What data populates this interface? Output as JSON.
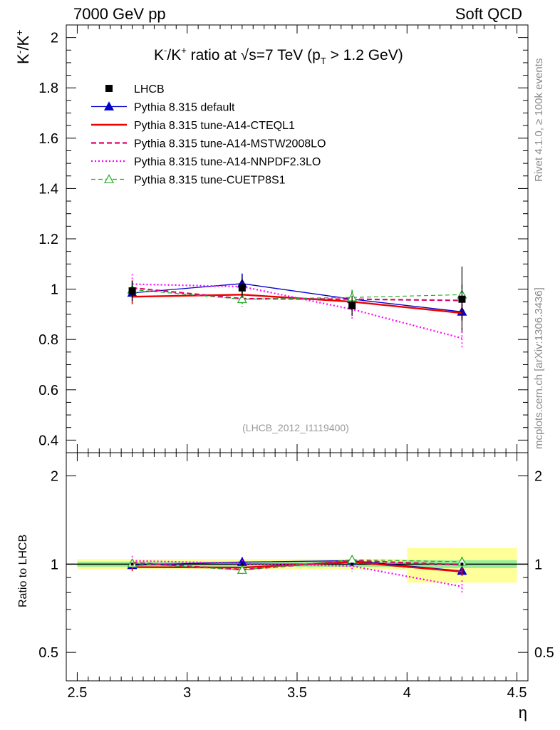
{
  "header": {
    "left": "7000 GeV pp",
    "right": "Soft QCD"
  },
  "side_labels": {
    "rivet": "Rivet 4.1.0, ≥ 100k events",
    "mcplots": "mcplots.cern.ch [arXiv:1306.3436]"
  },
  "chart_data": {
    "type": "line",
    "title": "K⁻/K⁺ ratio at √s=7 TeV (p_T > 1.2 GeV)",
    "title_parts": {
      "a": "K",
      "b": "/K",
      "c": " ratio at ",
      "d": "s=7 TeV (p",
      "e": " > 1.2 GeV)"
    },
    "analysis_id": "(LHCB_2012_I1119400)",
    "ylabel": "K⁻/K⁺",
    "ratio_ylabel": "Ratio to LHCB",
    "xlabel": "η",
    "xlim": [
      2.45,
      4.55
    ],
    "ylim": [
      0.35,
      2.05
    ],
    "ratio_ylim": [
      0.4,
      2.4
    ],
    "x_ticks": [
      "2.5",
      "3",
      "3.5",
      "4",
      "4.5"
    ],
    "y_ticks": [
      "0.4",
      "0.6",
      "0.8",
      "1",
      "1.2",
      "1.4",
      "1.6",
      "1.8",
      "2"
    ],
    "ratio_y_ticks": [
      "0.5",
      "1",
      "2"
    ],
    "x": [
      2.75,
      3.25,
      3.75,
      4.25
    ],
    "bins": [
      [
        2.5,
        3.0
      ],
      [
        3.0,
        3.5
      ],
      [
        3.5,
        4.0
      ],
      [
        4.0,
        4.5
      ]
    ],
    "data": {
      "name": "LHCB",
      "values": [
        0.993,
        1.005,
        0.934,
        0.96
      ],
      "err_stat": [
        0.02,
        0.02,
        0.02,
        0.03
      ],
      "err_tot": [
        0.04,
        0.04,
        0.04,
        0.13
      ]
    },
    "series": [
      {
        "name": "Pythia 8.315 default",
        "color": "#0000cc",
        "style": "solid",
        "width": 1.3,
        "marker": "triangle-filled",
        "values": [
          0.985,
          1.022,
          0.96,
          0.91
        ],
        "errors": [
          0.02,
          0.04,
          0.03,
          0.03
        ]
      },
      {
        "name": "Pythia 8.315 tune-A14-CTEQL1",
        "color": "#ee0000",
        "style": "solid",
        "width": 2.4,
        "marker": "none",
        "values": [
          0.97,
          0.978,
          0.95,
          0.905
        ],
        "errors": [
          0.03,
          0.03,
          0.03,
          0.03
        ]
      },
      {
        "name": "Pythia 8.315 tune-A14-MSTW2008LO",
        "color": "#e0006e",
        "style": "dashed",
        "width": 2.2,
        "marker": "none",
        "values": [
          1.005,
          0.962,
          0.96,
          0.955
        ],
        "errors": [
          0.03,
          0.03,
          0.03,
          0.03
        ]
      },
      {
        "name": "Pythia 8.315 tune-A14-NNPDF2.3LO",
        "color": "#ff00ff",
        "style": "dotted",
        "width": 2.2,
        "marker": "none",
        "values": [
          1.02,
          1.01,
          0.92,
          0.805
        ],
        "errors": [
          0.04,
          0.03,
          0.04,
          0.04
        ]
      },
      {
        "name": "Pythia 8.315 tune-CUETP8S1",
        "color": "#22aa22",
        "style": "dashed",
        "width": 1.2,
        "marker": "triangle-open",
        "values": [
          0.998,
          0.96,
          0.967,
          0.978
        ],
        "errors": [
          0.03,
          0.03,
          0.03,
          0.04
        ]
      }
    ]
  }
}
